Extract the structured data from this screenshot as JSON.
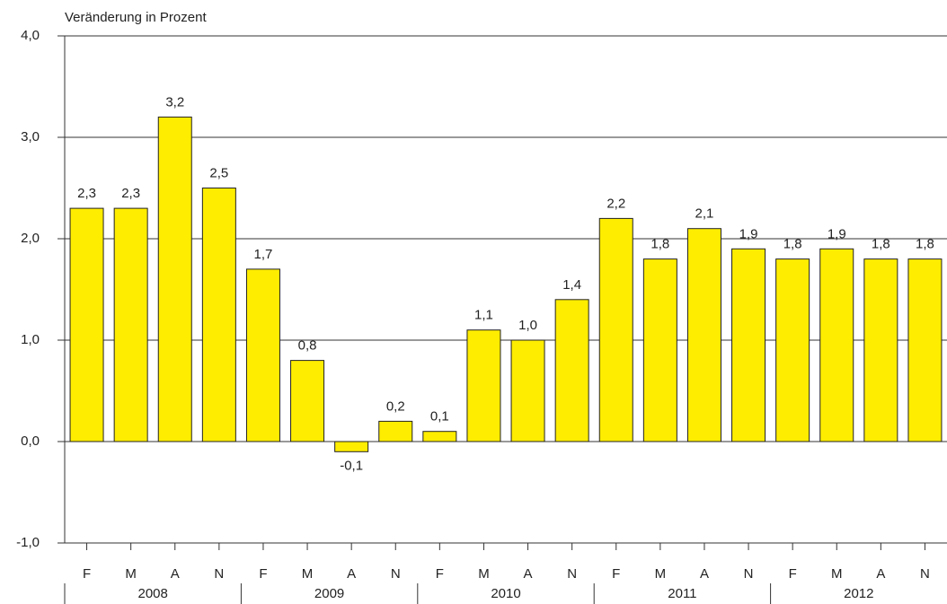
{
  "chart_data": {
    "type": "bar",
    "axis_label": "Veränderung in Prozent",
    "categories": [
      "F",
      "M",
      "A",
      "N",
      "F",
      "M",
      "A",
      "N",
      "F",
      "M",
      "A",
      "N",
      "F",
      "M",
      "A",
      "N",
      "F",
      "M",
      "A",
      "N"
    ],
    "year_groups": [
      "2008",
      "2009",
      "2010",
      "2011",
      "2012"
    ],
    "values": [
      2.3,
      2.3,
      3.2,
      2.5,
      1.7,
      0.8,
      -0.1,
      0.2,
      0.1,
      1.1,
      1.0,
      1.4,
      2.2,
      1.8,
      2.1,
      1.9,
      1.8,
      1.9,
      1.8,
      1.8
    ],
    "value_labels": [
      "2,3",
      "2,3",
      "3,2",
      "2,5",
      "1,7",
      "0,8",
      "-0,1",
      "0,2",
      "0,1",
      "1,1",
      "1,0",
      "1,4",
      "2,2",
      "1,8",
      "2,1",
      "1,9",
      "1,8",
      "1,9",
      "1,8",
      "1,8"
    ],
    "color": "#ffed00",
    "ylim": [
      -1,
      4
    ],
    "yticks": [
      {
        "value": -1,
        "label": "-1,0"
      },
      {
        "value": 0,
        "label": "0,0"
      },
      {
        "value": 1,
        "label": "1,0"
      },
      {
        "value": 2,
        "label": "2,0"
      },
      {
        "value": 3,
        "label": "3,0"
      },
      {
        "value": 4,
        "label": "4,0"
      }
    ],
    "grid": true
  }
}
